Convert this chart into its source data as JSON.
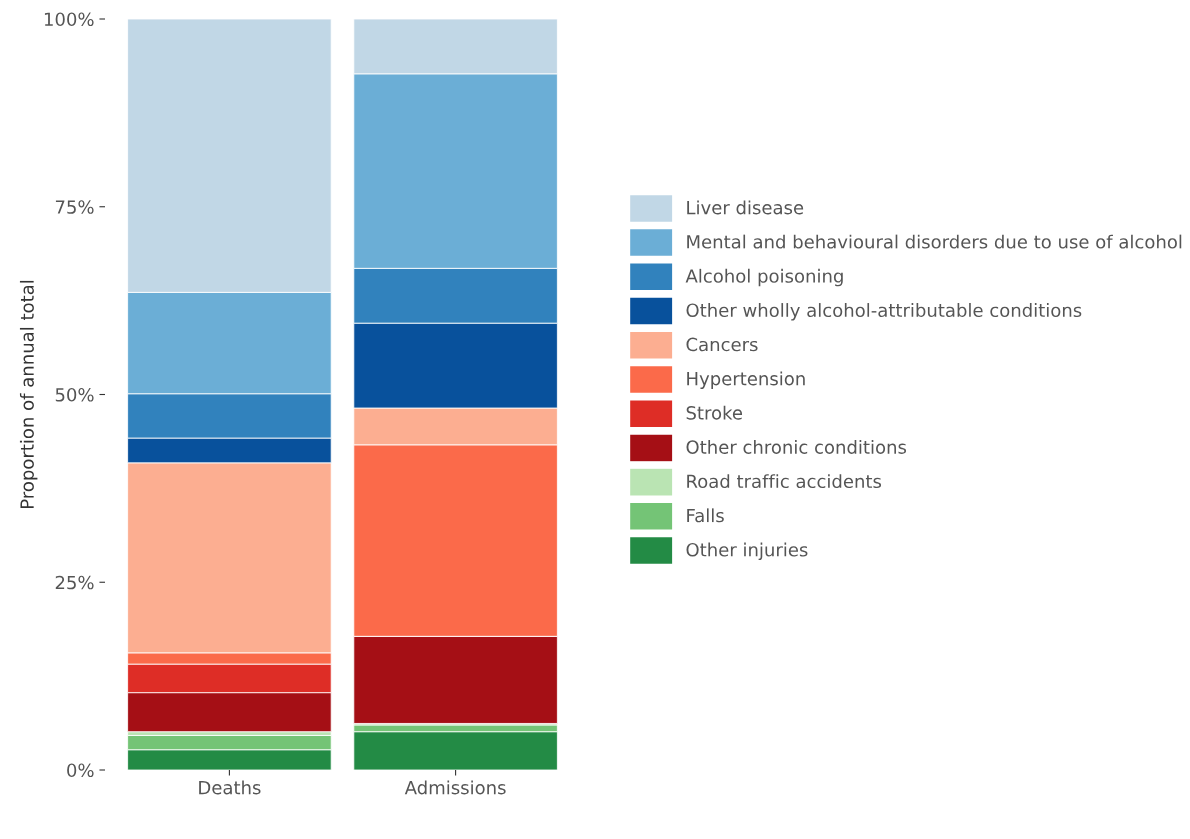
{
  "chart_data": {
    "type": "bar",
    "stacked": true,
    "ylabel": "Proportion of annual total",
    "categories": [
      "Deaths",
      "Admissions"
    ],
    "series": [
      {
        "name": "Other injuries",
        "color": "#238b45",
        "values": [
          2.7,
          5.1
        ]
      },
      {
        "name": "Falls",
        "color": "#74c476",
        "values": [
          1.9,
          0.9
        ]
      },
      {
        "name": "Road traffic accidents",
        "color": "#bae4b3",
        "values": [
          0.5,
          0.2
        ]
      },
      {
        "name": "Other chronic conditions",
        "color": "#a50f15",
        "values": [
          5.2,
          11.6
        ]
      },
      {
        "name": "Stroke",
        "color": "#de2d26",
        "values": [
          3.8,
          0.0
        ]
      },
      {
        "name": "Hypertension",
        "color": "#fb6a4a",
        "values": [
          1.5,
          25.5
        ]
      },
      {
        "name": "Cancers",
        "color": "#fcae91",
        "values": [
          25.3,
          4.9
        ]
      },
      {
        "name": "Other wholly alcohol-attributable conditions",
        "color": "#08519c",
        "values": [
          3.3,
          11.3
        ]
      },
      {
        "name": "Alcohol poisoning",
        "color": "#3182bd",
        "values": [
          5.9,
          7.3
        ]
      },
      {
        "name": "Mental and behavioural disorders due to use of alcohol",
        "color": "#6baed6",
        "values": [
          13.5,
          25.9
        ]
      },
      {
        "name": "Liver disease",
        "color": "#c1d7e6",
        "values": [
          36.4,
          7.3
        ]
      }
    ],
    "ylim": [
      0,
      100
    ],
    "yticks": [
      {
        "value": 0,
        "label": "0%"
      },
      {
        "value": 25,
        "label": "25%"
      },
      {
        "value": 50,
        "label": "50%"
      },
      {
        "value": 75,
        "label": "75%"
      },
      {
        "value": 100,
        "label": "100%"
      }
    ],
    "grid": false,
    "legend": "right"
  }
}
